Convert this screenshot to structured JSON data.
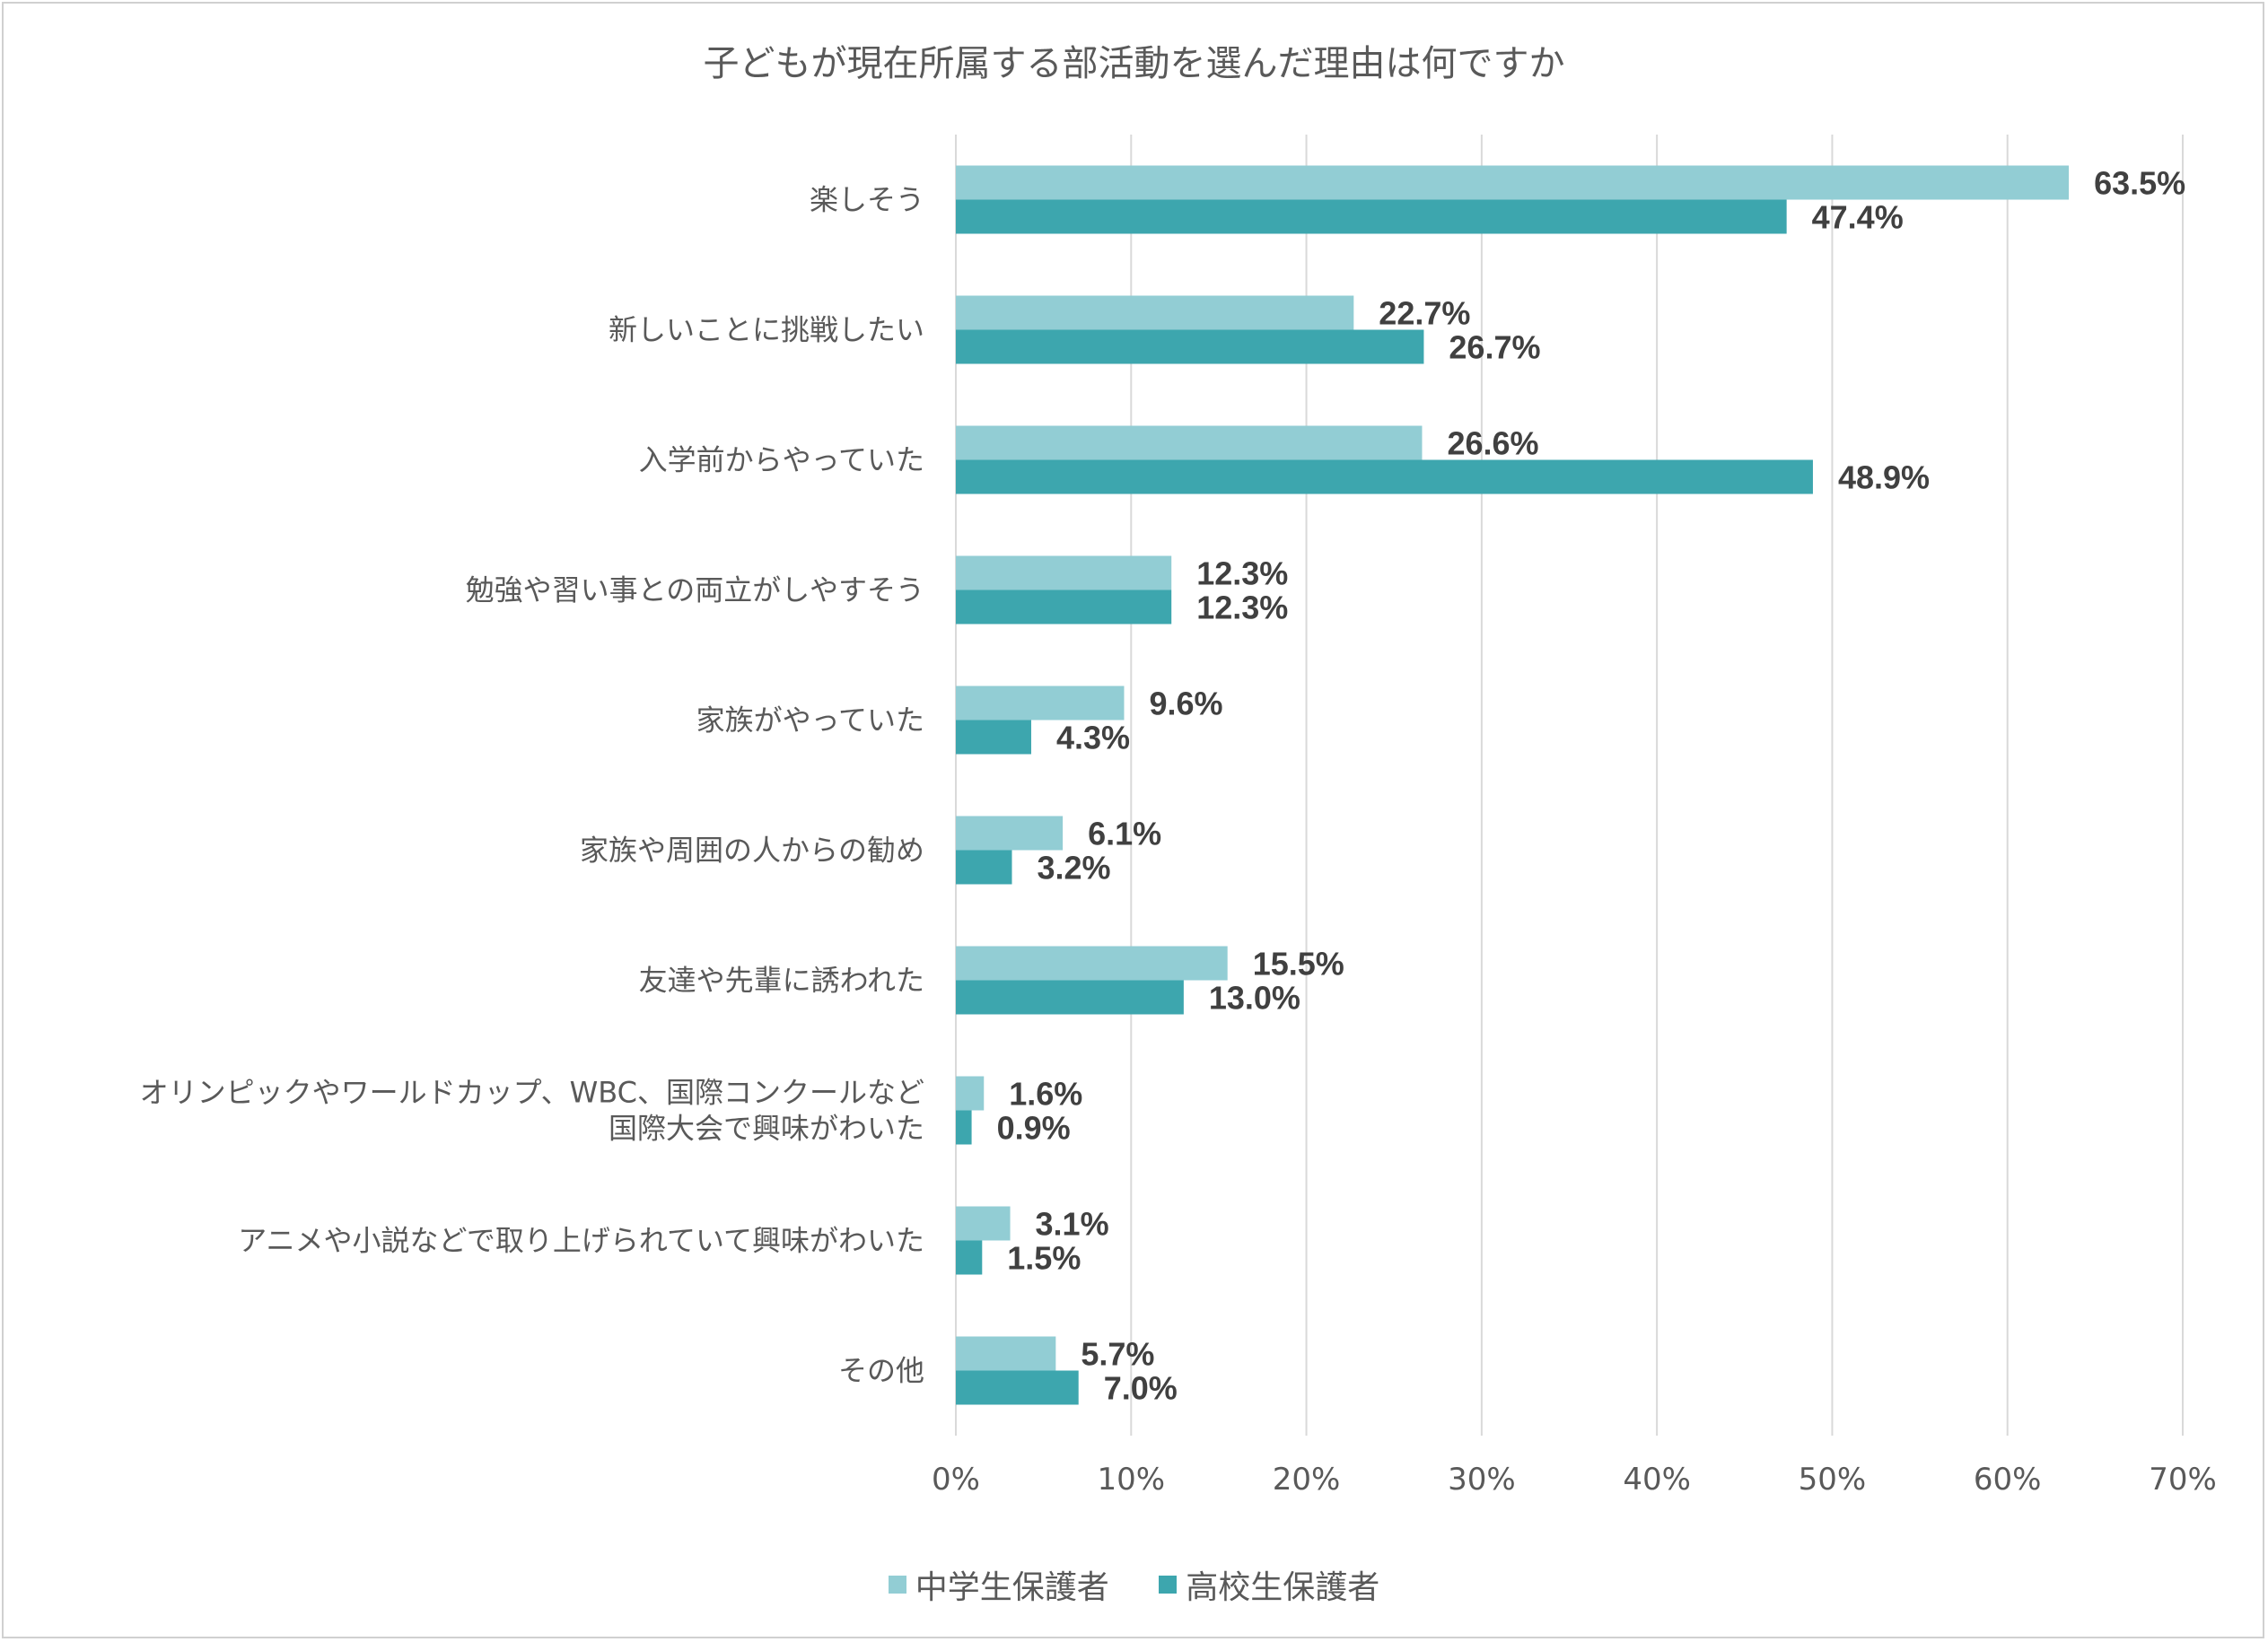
{
  "chart_data": {
    "type": "bar",
    "orientation": "horizontal",
    "title": "子どもが現在所属する部活動を選んだ理由は何ですか",
    "categories": [
      "楽しそう",
      "新しいことに挑戦したい",
      "入学前からやっていた",
      "勉強や習い事との両立がしやすそう",
      "家族がやっていた",
      "家族や周囲の人からの勧め",
      "友達や先輩に誘われた",
      "オリンピックやワールドカップ、WBC、国際コンクールなど\n国際大会で興味がわいた",
      "アニメや小説などで取り上げられていて興味がわいた",
      "その他"
    ],
    "series": [
      {
        "name": "中学生保護者",
        "color": "#92CDD4",
        "values": [
          63.5,
          22.7,
          26.6,
          12.3,
          9.6,
          6.1,
          15.5,
          1.6,
          3.1,
          5.7
        ],
        "labels": [
          "63.5%",
          "22.7%",
          "26.6%",
          "12.3%",
          "9.6%",
          "6.1%",
          "15.5%",
          "1.6%",
          "3.1%",
          "5.7%"
        ]
      },
      {
        "name": "高校生保護者",
        "color": "#3DA6AE",
        "values": [
          47.4,
          26.7,
          48.9,
          12.3,
          4.3,
          3.2,
          13.0,
          0.9,
          1.5,
          7.0
        ],
        "labels": [
          "47.4%",
          "26.7%",
          "48.9%",
          "12.3%",
          "4.3%",
          "3.2%",
          "13.0%",
          "0.9%",
          "1.5%",
          "7.0%"
        ]
      }
    ],
    "xlim": [
      0,
      70
    ],
    "xticks": [
      "0%",
      "10%",
      "20%",
      "30%",
      "40%",
      "50%",
      "60%",
      "70%"
    ],
    "grid": true,
    "legend": "bottom"
  }
}
